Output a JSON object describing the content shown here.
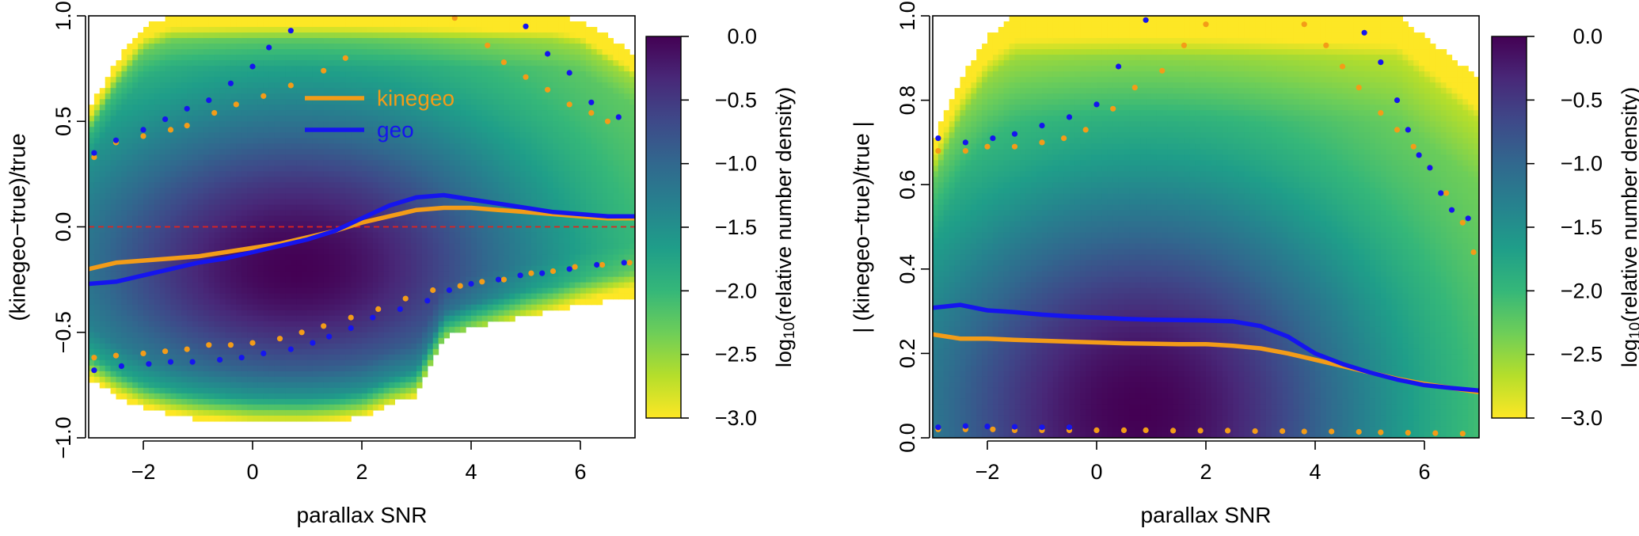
{
  "colors": {
    "kinegeo": "#f39c18",
    "geo": "#1515ee",
    "refline": "#e3231c",
    "viridis": [
      "#fde725",
      "#b5de2b",
      "#6ece58",
      "#35b779",
      "#1f9e89",
      "#26828e",
      "#31688e",
      "#3e4989",
      "#482878",
      "#440154"
    ]
  },
  "chart_data": [
    {
      "type": "heatmap",
      "panel": "left",
      "xlabel": "parallax SNR",
      "ylabel": "(kinegeo−true)/true",
      "xlim": [
        -3,
        7
      ],
      "ylim": [
        -1,
        1
      ],
      "xticks": [
        "−2",
        "0",
        "2",
        "4",
        "6"
      ],
      "xtick_values": [
        -2,
        0,
        2,
        4,
        6
      ],
      "yticks": [
        "−1.0",
        "−0.5",
        "0.0",
        "0.5",
        "1.0"
      ],
      "ytick_values": [
        -1,
        -0.5,
        0,
        0.5,
        1
      ],
      "reference_line": {
        "y": 0,
        "style": "dashed",
        "color": "#e3231c"
      },
      "legend": {
        "placement": "top-center",
        "entries": [
          {
            "label": "kinegeo",
            "color": "#f39c18"
          },
          {
            "label": "geo",
            "color": "#1515ee"
          }
        ]
      },
      "density": {
        "peak": {
          "x": 0.8,
          "y": -0.2
        },
        "envelope_x": [
          -3,
          -2.5,
          -2,
          -1.5,
          -1,
          -0.5,
          0,
          0.5,
          1,
          1.5,
          2,
          2.5,
          3,
          3.5,
          4,
          4.5,
          5,
          5.5,
          6,
          6.5,
          7
        ],
        "envelope_upper": [
          0.55,
          0.78,
          0.95,
          1,
          1,
          1,
          1,
          1,
          1,
          1,
          1,
          1,
          1,
          1,
          1,
          1,
          1,
          1,
          0.98,
          0.9,
          0.82
        ],
        "envelope_lower": [
          -0.72,
          -0.8,
          -0.86,
          -0.89,
          -0.91,
          -0.92,
          -0.93,
          -0.93,
          -0.93,
          -0.92,
          -0.9,
          -0.84,
          -0.8,
          -0.52,
          -0.48,
          -0.45,
          -0.42,
          -0.4,
          -0.37,
          -0.35,
          -0.33
        ]
      },
      "series": [
        {
          "name": "kinegeo",
          "kind": "median_line",
          "x": [
            -3,
            -2.5,
            -2,
            -1.5,
            -1,
            -0.5,
            0,
            0.5,
            1,
            1.5,
            2,
            2.5,
            3,
            3.5,
            4,
            4.5,
            5,
            5.5,
            6,
            6.5,
            7
          ],
          "y": [
            -0.2,
            -0.17,
            -0.16,
            -0.15,
            -0.14,
            -0.12,
            -0.1,
            -0.08,
            -0.05,
            -0.02,
            0.02,
            0.05,
            0.08,
            0.09,
            0.09,
            0.08,
            0.07,
            0.06,
            0.05,
            0.04,
            0.04
          ]
        },
        {
          "name": "geo",
          "kind": "median_line",
          "x": [
            -3,
            -2.5,
            -2,
            -1.5,
            -1,
            -0.5,
            0,
            0.5,
            1,
            1.5,
            2,
            2.5,
            3,
            3.5,
            4,
            4.5,
            5,
            5.5,
            6,
            6.5,
            7
          ],
          "y": [
            -0.27,
            -0.26,
            -0.23,
            -0.2,
            -0.17,
            -0.15,
            -0.12,
            -0.09,
            -0.06,
            -0.02,
            0.04,
            0.1,
            0.14,
            0.15,
            0.13,
            0.11,
            0.09,
            0.07,
            0.06,
            0.05,
            0.05
          ]
        },
        {
          "name": "kinegeo",
          "kind": "quantile_upper",
          "x": [
            -2.9,
            -2.5,
            -2.0,
            -1.5,
            -1.2,
            -0.7,
            -0.3,
            0.2,
            0.7,
            1.3,
            1.7,
            3.7,
            4.3,
            4.6,
            5.0,
            5.4,
            5.8,
            6.2,
            6.5
          ],
          "y": [
            0.33,
            0.4,
            0.43,
            0.46,
            0.48,
            0.54,
            0.58,
            0.62,
            0.67,
            0.74,
            0.8,
            0.99,
            0.86,
            0.78,
            0.71,
            0.65,
            0.58,
            0.54,
            0.5
          ]
        },
        {
          "name": "geo",
          "kind": "quantile_upper",
          "x": [
            -2.9,
            -2.5,
            -2.0,
            -1.6,
            -1.2,
            -0.8,
            -0.4,
            0.0,
            0.3,
            0.7,
            5.0,
            5.4,
            5.8,
            6.2,
            6.7
          ],
          "y": [
            0.35,
            0.41,
            0.46,
            0.51,
            0.56,
            0.6,
            0.68,
            0.76,
            0.85,
            0.93,
            0.95,
            0.82,
            0.73,
            0.59,
            0.52
          ]
        },
        {
          "name": "kinegeo",
          "kind": "quantile_lower",
          "x": [
            -2.9,
            -2.5,
            -2.0,
            -1.6,
            -1.2,
            -0.8,
            -0.4,
            0.0,
            0.5,
            0.9,
            1.3,
            1.8,
            2.3,
            2.8,
            3.3,
            3.8,
            4.2,
            4.6,
            5.1,
            5.5,
            5.9,
            6.4,
            6.9
          ],
          "y": [
            -0.62,
            -0.61,
            -0.6,
            -0.59,
            -0.58,
            -0.56,
            -0.56,
            -0.55,
            -0.53,
            -0.5,
            -0.47,
            -0.43,
            -0.39,
            -0.34,
            -0.3,
            -0.28,
            -0.26,
            -0.25,
            -0.22,
            -0.21,
            -0.19,
            -0.18,
            -0.17
          ]
        },
        {
          "name": "geo",
          "kind": "quantile_lower",
          "x": [
            -2.9,
            -2.4,
            -1.9,
            -1.5,
            -1.1,
            -0.6,
            -0.2,
            0.2,
            0.7,
            1.1,
            1.4,
            1.8,
            2.2,
            2.7,
            3.2,
            3.6,
            4.0,
            4.5,
            4.9,
            5.3,
            5.8,
            6.3,
            6.8
          ],
          "y": [
            -0.68,
            -0.66,
            -0.65,
            -0.64,
            -0.64,
            -0.63,
            -0.62,
            -0.6,
            -0.58,
            -0.55,
            -0.52,
            -0.48,
            -0.43,
            -0.39,
            -0.35,
            -0.3,
            -0.27,
            -0.25,
            -0.23,
            -0.22,
            -0.2,
            -0.18,
            -0.17
          ]
        }
      ],
      "colorbar": {
        "label_pre": "log",
        "label_sub": "10",
        "label_post": "(relative number density)",
        "range": [
          -3,
          0
        ],
        "ticks": [
          "0.0",
          "−0.5",
          "−1.0",
          "−1.5",
          "−2.0",
          "−2.5",
          "−3.0"
        ],
        "tick_values": [
          0,
          -0.5,
          -1,
          -1.5,
          -2,
          -2.5,
          -3
        ]
      }
    },
    {
      "type": "heatmap",
      "panel": "right",
      "xlabel": "parallax SNR",
      "ylabel": "| (kinegeo−true)/true |",
      "xlim": [
        -3,
        7
      ],
      "ylim": [
        0,
        1
      ],
      "xticks": [
        "−2",
        "0",
        "2",
        "4",
        "6"
      ],
      "xtick_values": [
        -2,
        0,
        2,
        4,
        6
      ],
      "yticks": [
        "0.0",
        "0.2",
        "0.4",
        "0.6",
        "0.8",
        "1.0"
      ],
      "ytick_values": [
        0,
        0.2,
        0.4,
        0.6,
        0.8,
        1
      ],
      "density": {
        "peak": {
          "x": 0.8,
          "y": 0.06
        },
        "envelope_x": [
          -3,
          -2.5,
          -2,
          -1.5,
          -1,
          -0.5,
          0,
          0.5,
          1,
          1.5,
          2,
          2.5,
          3,
          3.5,
          4,
          4.5,
          5,
          5.5,
          6,
          6.5,
          7
        ],
        "envelope_upper": [
          0.7,
          0.85,
          0.95,
          1,
          1,
          1,
          1,
          1,
          1,
          1,
          1,
          1,
          1,
          1,
          1,
          1,
          1,
          1,
          0.95,
          0.9,
          0.85
        ],
        "envelope_lower": [
          0,
          0,
          0,
          0,
          0,
          0,
          0,
          0,
          0,
          0,
          0,
          0,
          0,
          0,
          0,
          0,
          0,
          0,
          0,
          0,
          0
        ]
      },
      "series": [
        {
          "name": "kinegeo",
          "kind": "median_line",
          "x": [
            -3,
            -2.5,
            -2,
            -1.5,
            -1,
            -0.5,
            0,
            0.5,
            1,
            1.5,
            2,
            2.5,
            3,
            3.5,
            4,
            4.5,
            5,
            5.5,
            6,
            6.5,
            7
          ],
          "y": [
            0.245,
            0.235,
            0.235,
            0.232,
            0.23,
            0.228,
            0.226,
            0.224,
            0.223,
            0.222,
            0.222,
            0.218,
            0.212,
            0.2,
            0.185,
            0.17,
            0.155,
            0.14,
            0.128,
            0.118,
            0.108
          ]
        },
        {
          "name": "geo",
          "kind": "median_line",
          "x": [
            -3,
            -2.5,
            -2,
            -1.5,
            -1,
            -0.5,
            0,
            0.5,
            1,
            1.5,
            2,
            2.5,
            3,
            3.5,
            4,
            4.5,
            5,
            5.5,
            6,
            6.5,
            7
          ],
          "y": [
            0.308,
            0.315,
            0.302,
            0.298,
            0.292,
            0.288,
            0.285,
            0.282,
            0.28,
            0.279,
            0.278,
            0.276,
            0.265,
            0.24,
            0.2,
            0.175,
            0.155,
            0.138,
            0.125,
            0.118,
            0.112
          ]
        },
        {
          "name": "kinegeo",
          "kind": "quantile_upper",
          "x": [
            -2.9,
            -2.4,
            -2.0,
            -1.5,
            -1.0,
            -0.6,
            -0.2,
            0.3,
            0.7,
            1.2,
            1.6,
            2.0,
            3.8,
            4.2,
            4.5,
            4.8,
            5.2,
            5.5,
            5.8,
            6.1,
            6.4,
            6.7,
            6.9
          ],
          "y": [
            0.68,
            0.68,
            0.69,
            0.69,
            0.7,
            0.71,
            0.73,
            0.78,
            0.83,
            0.87,
            0.93,
            0.98,
            0.98,
            0.93,
            0.88,
            0.83,
            0.77,
            0.73,
            0.69,
            0.64,
            0.58,
            0.51,
            0.44
          ]
        },
        {
          "name": "geo",
          "kind": "quantile_upper",
          "x": [
            -2.9,
            -2.4,
            -1.9,
            -1.5,
            -1.0,
            -0.5,
            0.0,
            0.4,
            0.9,
            4.9,
            5.2,
            5.5,
            5.7,
            5.9,
            6.1,
            6.3,
            6.5,
            6.8
          ],
          "y": [
            0.71,
            0.7,
            0.71,
            0.72,
            0.74,
            0.76,
            0.79,
            0.88,
            0.99,
            0.96,
            0.89,
            0.8,
            0.73,
            0.67,
            0.64,
            0.58,
            0.54,
            0.52
          ]
        },
        {
          "name": "kinegeo",
          "kind": "quantile_lower",
          "x": [
            -2.9,
            -2.4,
            -1.9,
            -1.5,
            -1.0,
            -0.5,
            0.0,
            0.5,
            0.9,
            1.4,
            1.9,
            2.4,
            2.9,
            3.4,
            3.8,
            4.3,
            4.8,
            5.2,
            5.7,
            6.2,
            6.7
          ],
          "y": [
            0.02,
            0.02,
            0.02,
            0.018,
            0.018,
            0.018,
            0.018,
            0.018,
            0.018,
            0.017,
            0.017,
            0.017,
            0.016,
            0.016,
            0.015,
            0.015,
            0.014,
            0.013,
            0.012,
            0.011,
            0.01
          ]
        },
        {
          "name": "geo",
          "kind": "quantile_lower",
          "x": [
            -2.9,
            -2.4,
            -2.0,
            -1.5,
            -1.0,
            -0.5
          ],
          "y": [
            0.025,
            0.028,
            0.027,
            0.026,
            0.025,
            0.025
          ]
        }
      ],
      "colorbar": {
        "label_pre": "log",
        "label_sub": "10",
        "label_post": "(relative number density)",
        "range": [
          -3,
          0
        ],
        "ticks": [
          "0.0",
          "−0.5",
          "−1.0",
          "−1.5",
          "−2.0",
          "−2.5",
          "−3.0"
        ],
        "tick_values": [
          0,
          -0.5,
          -1,
          -1.5,
          -2,
          -2.5,
          -3
        ]
      }
    }
  ]
}
